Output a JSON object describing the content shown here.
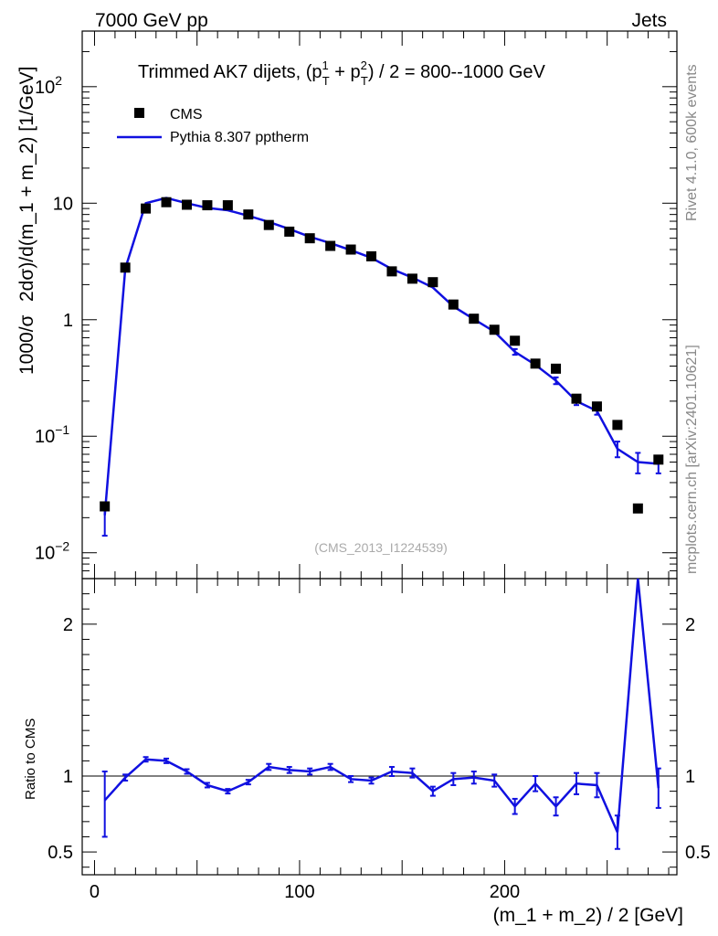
{
  "header": {
    "left": "7000 GeV pp",
    "right": "Jets"
  },
  "side_labels": {
    "rivet": "Rivet 4.1.0,  600k events",
    "mcplots": "mcplots.cern.ch [arXiv:2401.10621]"
  },
  "analysis_tag": "(CMS_2013_I1224539)",
  "colors": {
    "data": "#000000",
    "mc": "#1010e0",
    "axis": "#000000"
  },
  "chart_data": [
    {
      "type": "scatter",
      "title": "Trimmed AK7 dijets, (p_T^1 + p_T^2) / 2 = 800--1000 GeV",
      "title_parts": {
        "pre": "Trimmed AK7 dijets, (p",
        "sub1": "T",
        "sup1": "1",
        "mid": " + p",
        "sub2": "T",
        "sup2": "2",
        "post": ") / 2 = 800--1000 GeV"
      },
      "ylabel": "1000/σ   2dσ)/d(m_1 + m_2) [1/GeV]",
      "ylabel_parts": [
        "1000/σ",
        "2dσ)/d(m_1 + m_2) [1/GeV]"
      ],
      "yscale": "log",
      "ylim": [
        0.006,
        300
      ],
      "xlim": [
        -6,
        284
      ],
      "ytick_labels": [
        {
          "value": 100,
          "base": "10",
          "exp": "2"
        },
        {
          "value": 10,
          "base": "10",
          "exp": ""
        },
        {
          "value": 1,
          "base": "1",
          "exp": ""
        },
        {
          "value": 0.1,
          "base": "10",
          "exp": "−1"
        },
        {
          "value": 0.01,
          "base": "10",
          "exp": "−2"
        }
      ],
      "legend": [
        {
          "name": "CMS",
          "marker": "square"
        },
        {
          "name": "Pythia 8.307 pptherm",
          "marker": "line"
        }
      ],
      "legend_position": "top-left",
      "series": [
        {
          "name": "CMS",
          "x": [
            5,
            15,
            25,
            35,
            45,
            55,
            65,
            75,
            85,
            95,
            105,
            115,
            125,
            135,
            145,
            155,
            165,
            175,
            185,
            195,
            205,
            215,
            225,
            235,
            245,
            255,
            265,
            275
          ],
          "values": [
            0.025,
            2.8,
            9.0,
            10.2,
            9.7,
            9.6,
            9.6,
            8.0,
            6.5,
            5.7,
            5.0,
            4.3,
            4.0,
            3.5,
            2.6,
            2.25,
            2.1,
            1.35,
            1.02,
            0.82,
            0.66,
            0.42,
            0.38,
            0.21,
            0.18,
            0.125,
            0.024,
            0.063
          ]
        },
        {
          "name": "Pythia 8.307 pptherm",
          "x": [
            5,
            15,
            25,
            35,
            45,
            55,
            65,
            75,
            85,
            95,
            105,
            115,
            125,
            135,
            145,
            155,
            165,
            175,
            185,
            195,
            205,
            215,
            225,
            235,
            245,
            255,
            265,
            275
          ],
          "values": [
            0.021,
            2.75,
            10.0,
            11.1,
            10.0,
            9.1,
            8.7,
            7.8,
            6.9,
            6.0,
            5.15,
            4.55,
            3.95,
            3.4,
            2.72,
            2.3,
            1.89,
            1.3,
            1.01,
            0.79,
            0.53,
            0.41,
            0.3,
            0.2,
            0.165,
            0.078,
            0.06,
            0.058
          ],
          "err_low": [
            0.007,
            0.05,
            0.1,
            0.1,
            0.1,
            0.1,
            0.1,
            0.1,
            0.1,
            0.1,
            0.1,
            0.05,
            0.05,
            0.05,
            0.05,
            0.05,
            0.05,
            0.03,
            0.03,
            0.03,
            0.03,
            0.02,
            0.02,
            0.015,
            0.012,
            0.012,
            0.012,
            0.01
          ],
          "err_high": [
            0.006,
            0.05,
            0.1,
            0.1,
            0.1,
            0.1,
            0.1,
            0.1,
            0.1,
            0.1,
            0.1,
            0.05,
            0.05,
            0.05,
            0.05,
            0.05,
            0.05,
            0.03,
            0.03,
            0.03,
            0.03,
            0.02,
            0.02,
            0.015,
            0.012,
            0.012,
            0.012,
            0.01
          ]
        }
      ]
    },
    {
      "type": "line",
      "ylabel": "Ratio to CMS",
      "xlabel": "(m_1 + m_2) / 2 [GeV]",
      "xlim": [
        -6,
        284
      ],
      "ylim": [
        0.35,
        2.3
      ],
      "yticks": [
        0.5,
        1,
        2
      ],
      "ytick_labels": [
        "0.5",
        "1",
        "2"
      ],
      "xticks": [
        0,
        100,
        200
      ],
      "xtick_labels": [
        "0",
        "100",
        "200"
      ],
      "reference_line": 1,
      "series": [
        {
          "name": "Pythia 8.307 pptherm / CMS",
          "x": [
            5,
            15,
            25,
            35,
            45,
            55,
            65,
            75,
            85,
            95,
            105,
            115,
            125,
            135,
            145,
            155,
            165,
            175,
            185,
            195,
            205,
            215,
            225,
            235,
            245,
            255,
            265,
            275
          ],
          "values": [
            0.84,
            0.99,
            1.11,
            1.1,
            1.03,
            0.94,
            0.9,
            0.96,
            1.06,
            1.04,
            1.03,
            1.06,
            0.98,
            0.97,
            1.03,
            1.02,
            0.9,
            0.98,
            0.99,
            0.97,
            0.8,
            0.95,
            0.8,
            0.95,
            0.94,
            0.63,
            2.3,
            0.92
          ],
          "err_low": [
            0.24,
            0.02,
            0.015,
            0.015,
            0.015,
            0.015,
            0.015,
            0.015,
            0.02,
            0.02,
            0.02,
            0.02,
            0.02,
            0.02,
            0.03,
            0.03,
            0.03,
            0.04,
            0.04,
            0.04,
            0.05,
            0.05,
            0.06,
            0.07,
            0.08,
            0.11,
            0.0,
            0.13
          ],
          "err_high": [
            0.19,
            0.02,
            0.015,
            0.015,
            0.015,
            0.015,
            0.015,
            0.015,
            0.02,
            0.02,
            0.02,
            0.02,
            0.02,
            0.02,
            0.03,
            0.03,
            0.03,
            0.04,
            0.04,
            0.04,
            0.05,
            0.05,
            0.06,
            0.07,
            0.08,
            0.11,
            0.0,
            0.13
          ]
        }
      ]
    }
  ]
}
